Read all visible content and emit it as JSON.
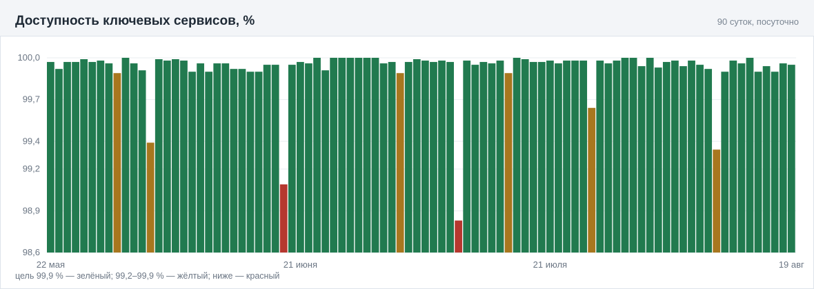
{
  "header": {
    "title": "Доступность ключевых сервисов, %",
    "subtitle": "90 суток, посуточно"
  },
  "note": "цель 99,9 % — зелёный; 99,2–99,9 % — жёлтый; ниже — красный",
  "colors": {
    "green": "#217a4f",
    "yellow": "#a8771f",
    "red": "#b5382f"
  },
  "chart_data": {
    "type": "bar",
    "ylim": [
      98.6,
      100.0
    ],
    "yticks": [
      100.0,
      99.7,
      99.4,
      99.2,
      98.9,
      98.6
    ],
    "ytick_labels": [
      "100,0",
      "99,7",
      "99,4",
      "99,2",
      "98,9",
      "98,6"
    ],
    "xtick_labels": [
      {
        "index": 0,
        "label": "22 мая"
      },
      {
        "index": 30,
        "label": "21 июня"
      },
      {
        "index": 60,
        "label": "21 июля"
      },
      {
        "index": 89,
        "label": "19 авг"
      }
    ],
    "grid": true,
    "values": [
      99.97,
      99.92,
      99.97,
      99.97,
      99.99,
      99.97,
      99.98,
      99.96,
      99.89,
      100.0,
      99.96,
      99.91,
      99.39,
      99.99,
      99.98,
      99.99,
      99.98,
      99.9,
      99.96,
      99.9,
      99.96,
      99.96,
      99.92,
      99.92,
      99.9,
      99.9,
      99.95,
      99.95,
      99.09,
      99.95,
      99.97,
      99.96,
      100.0,
      99.91,
      100.0,
      100.0,
      100.0,
      100.0,
      100.0,
      100.0,
      99.96,
      99.97,
      99.89,
      99.97,
      99.99,
      99.98,
      99.97,
      99.98,
      99.97,
      98.83,
      99.98,
      99.95,
      99.97,
      99.96,
      99.98,
      99.89,
      100.0,
      99.99,
      99.97,
      99.97,
      99.98,
      99.96,
      99.98,
      99.98,
      99.98,
      99.64,
      99.98,
      99.96,
      99.98,
      100.0,
      100.0,
      99.94,
      100.0,
      99.93,
      99.97,
      99.98,
      99.94,
      99.98,
      99.95,
      99.92,
      99.34,
      99.9,
      99.98,
      99.96,
      100.0,
      99.9,
      99.94,
      99.9,
      99.96,
      99.95
    ]
  }
}
